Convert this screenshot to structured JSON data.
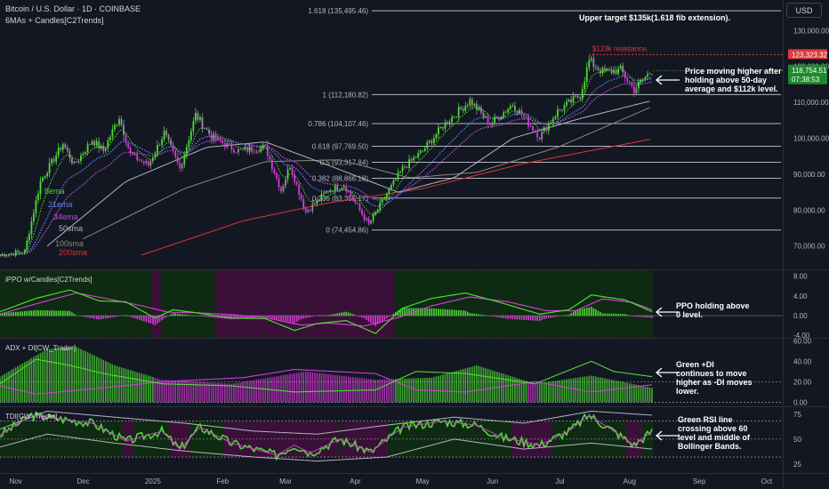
{
  "header": {
    "symbol_line": "Bitcoin / U.S. Dollar · 1D · COINBASE",
    "indicator_line": "6MAs + Candles[C2Trends]",
    "currency_button": "USD"
  },
  "colors": {
    "background": "#131722",
    "bull": "#4ed934",
    "bear": "#d43ad6",
    "neutral": "#8f8f8f",
    "ema8": "#4ed934",
    "ema21": "#5b7ff0",
    "ema34": "#b94fd6",
    "sma50": "#b2b5be",
    "sma100": "#8a8a78",
    "sma200": "#d93535",
    "fib_line": "#b2b5be",
    "current_price_bg": "#1e8a2e",
    "resistance": "#e03a3a",
    "ppo_bg_bull": "#0f2a12",
    "ppo_bg_bear": "#3a1038"
  },
  "chart_data": [
    {
      "type": "candlestick",
      "title": "Bitcoin / U.S. Dollar · 1D · COINBASE",
      "x_ticks": [
        "Nov",
        "Dec",
        "2025",
        "Feb",
        "Mar",
        "Apr",
        "May",
        "Jun",
        "Jul",
        "Aug",
        "Sep",
        "Oct"
      ],
      "y_ticks": [
        70000,
        80000,
        90000,
        100000,
        110000,
        120000,
        130000
      ],
      "y_tick_labels": [
        "70,000.00",
        "80,000.00",
        "90,000.00",
        "100,000.00",
        "110,000.00",
        "120,000.00",
        "130,000.00"
      ],
      "ylim": [
        63500,
        138500
      ],
      "current_price": 118754.51,
      "current_price_label": "118,754.51",
      "countdown": "07:38:53",
      "resistance_price": 123323.32,
      "resistance_price_label": "123,323.32",
      "resistance_text": "$123k resistance.",
      "fib_levels": [
        {
          "label": "1.618 (135,495.46)",
          "value": 135495.46
        },
        {
          "label": "1 (112,180.82)",
          "value": 112180.82
        },
        {
          "label": "0.786 (104,107.46)",
          "value": 104107.46
        },
        {
          "label": "0.618 (97,769.50)",
          "value": 97769.5
        },
        {
          "label": "0.5 (93,317.84)",
          "value": 93317.84
        },
        {
          "label": "0.382 (88,866.18)",
          "value": 88866.18
        },
        {
          "label": "0.236 (83,355.17)",
          "value": 83355.17
        },
        {
          "label": "0 (74,454.86)",
          "value": 74454.86
        }
      ],
      "price_path": [
        [
          "2024-10-25",
          67500
        ],
        [
          "2024-11-05",
          68500
        ],
        [
          "2024-11-12",
          88000
        ],
        [
          "2024-11-22",
          98500
        ],
        [
          "2024-11-27",
          92500
        ],
        [
          "2024-12-05",
          99500
        ],
        [
          "2024-12-10",
          96500
        ],
        [
          "2024-12-17",
          106000
        ],
        [
          "2024-12-22",
          95500
        ],
        [
          "2024-12-30",
          92500
        ],
        [
          "2025-01-06",
          101500
        ],
        [
          "2025-01-13",
          91500
        ],
        [
          "2025-01-20",
          106500
        ],
        [
          "2025-01-27",
          100500
        ],
        [
          "2025-02-03",
          98000
        ],
        [
          "2025-02-08",
          96500
        ],
        [
          "2025-02-20",
          97500
        ],
        [
          "2025-02-27",
          85500
        ],
        [
          "2025-03-03",
          92500
        ],
        [
          "2025-03-10",
          79500
        ],
        [
          "2025-03-20",
          85500
        ],
        [
          "2025-03-27",
          87000
        ],
        [
          "2025-04-07",
          76000
        ],
        [
          "2025-04-15",
          84500
        ],
        [
          "2025-04-22",
          91500
        ],
        [
          "2025-05-01",
          96500
        ],
        [
          "2025-05-10",
          103500
        ],
        [
          "2025-05-22",
          110500
        ],
        [
          "2025-05-31",
          104000
        ],
        [
          "2025-06-10",
          109500
        ],
        [
          "2025-06-22",
          100500
        ],
        [
          "2025-06-30",
          107500
        ],
        [
          "2025-07-10",
          112000
        ],
        [
          "2025-07-14",
          121500
        ],
        [
          "2025-07-20",
          118500
        ],
        [
          "2025-07-28",
          119000
        ],
        [
          "2025-08-03",
          113500
        ],
        [
          "2025-08-08",
          117000
        ],
        [
          "2025-08-11",
          118754
        ]
      ],
      "series": [
        {
          "name": "8ema",
          "color": "#4ed934"
        },
        {
          "name": "21ema",
          "color": "#5b7ff0"
        },
        {
          "name": "34ema",
          "color": "#b94fd6"
        },
        {
          "name": "50sma",
          "color": "#b2b5be"
        },
        {
          "name": "100sma",
          "color": "#8a8a78"
        },
        {
          "name": "200sma",
          "color": "#d93535"
        }
      ],
      "ma_paths": {
        "50sma": [
          [
            "2024-11-15",
            70000
          ],
          [
            "2024-12-20",
            88000
          ],
          [
            "2025-01-25",
            97500
          ],
          [
            "2025-02-20",
            99000
          ],
          [
            "2025-03-20",
            92500
          ],
          [
            "2025-04-20",
            85000
          ],
          [
            "2025-05-15",
            89000
          ],
          [
            "2025-06-10",
            100000
          ],
          [
            "2025-07-10",
            105500
          ],
          [
            "2025-08-11",
            110500
          ]
        ],
        "100sma": [
          [
            "2024-12-01",
            72000
          ],
          [
            "2025-01-15",
            86000
          ],
          [
            "2025-02-20",
            93500
          ],
          [
            "2025-03-25",
            94000
          ],
          [
            "2025-04-25",
            89000
          ],
          [
            "2025-05-25",
            90500
          ],
          [
            "2025-06-30",
            97500
          ],
          [
            "2025-08-11",
            108800
          ]
        ],
        "200sma": [
          [
            "2024-12-27",
            67500
          ],
          [
            "2025-02-10",
            77000
          ],
          [
            "2025-03-20",
            82000
          ],
          [
            "2025-05-01",
            86000
          ],
          [
            "2025-06-15",
            93000
          ],
          [
            "2025-08-11",
            99800
          ]
        ]
      },
      "annotations": [
        {
          "text": "Upper target $135k(1.618 fib extension)."
        },
        {
          "lines": [
            "Price moving higher after",
            "holding above 50-day",
            "average and $112k level."
          ]
        }
      ]
    },
    {
      "type": "line",
      "title": "iPPO w/Candles[C2Trends]",
      "y_ticks": [
        -4,
        0,
        4,
        8
      ],
      "y_tick_labels": [
        "-4.00",
        "0.00",
        "4.00",
        "8.00"
      ],
      "ylim": [
        -4.5,
        9.2
      ],
      "fast": [
        [
          "2024-10-25",
          0.8
        ],
        [
          "2024-11-10",
          3.5
        ],
        [
          "2024-11-25",
          5.2
        ],
        [
          "2024-12-08",
          3.0
        ],
        [
          "2024-12-20",
          2.8
        ],
        [
          "2025-01-02",
          -0.5
        ],
        [
          "2025-01-10",
          1.2
        ],
        [
          "2025-01-20",
          0.6
        ],
        [
          "2025-02-05",
          -0.5
        ],
        [
          "2025-02-20",
          -0.6
        ],
        [
          "2025-03-05",
          -3.0
        ],
        [
          "2025-03-15",
          -1.6
        ],
        [
          "2025-03-28",
          -1.0
        ],
        [
          "2025-04-10",
          -3.6
        ],
        [
          "2025-04-22",
          1.5
        ],
        [
          "2025-05-05",
          3.5
        ],
        [
          "2025-05-20",
          4.6
        ],
        [
          "2025-06-05",
          2.6
        ],
        [
          "2025-06-22",
          0.3
        ],
        [
          "2025-07-05",
          1.2
        ],
        [
          "2025-07-15",
          4.2
        ],
        [
          "2025-07-30",
          3.2
        ],
        [
          "2025-08-11",
          0.8
        ]
      ],
      "slow": [
        [
          "2024-10-25",
          0.3
        ],
        [
          "2024-11-10",
          2.4
        ],
        [
          "2024-11-28",
          4.6
        ],
        [
          "2024-12-12",
          3.4
        ],
        [
          "2024-12-25",
          2.2
        ],
        [
          "2025-01-08",
          0.7
        ],
        [
          "2025-01-20",
          0.6
        ],
        [
          "2025-02-05",
          0.2
        ],
        [
          "2025-02-20",
          -0.4
        ],
        [
          "2025-03-08",
          -1.9
        ],
        [
          "2025-03-20",
          -1.5
        ],
        [
          "2025-04-05",
          -2.1
        ],
        [
          "2025-04-20",
          -0.4
        ],
        [
          "2025-05-05",
          2.0
        ],
        [
          "2025-05-22",
          3.8
        ],
        [
          "2025-06-08",
          2.8
        ],
        [
          "2025-06-25",
          1.0
        ],
        [
          "2025-07-08",
          1.0
        ],
        [
          "2025-07-20",
          3.4
        ],
        [
          "2025-08-02",
          2.7
        ],
        [
          "2025-08-11",
          1.2
        ]
      ],
      "annotation": [
        "PPO holding above",
        "0 level."
      ]
    },
    {
      "type": "line",
      "title": "ADX + DI[CW_Trader]",
      "y_ticks": [
        0,
        20,
        40,
        60
      ],
      "y_tick_labels": [
        "0.00",
        "20.00",
        "40.00",
        "60.00"
      ],
      "ylim": [
        -4,
        62
      ],
      "adx": [
        [
          "2024-10-25",
          25
        ],
        [
          "2024-11-15",
          52
        ],
        [
          "2024-11-28",
          54
        ],
        [
          "2024-12-15",
          36
        ],
        [
          "2025-01-05",
          22
        ],
        [
          "2025-02-05",
          18
        ],
        [
          "2025-03-10",
          30
        ],
        [
          "2025-03-25",
          26
        ],
        [
          "2025-04-10",
          22
        ],
        [
          "2025-05-05",
          24
        ],
        [
          "2025-05-25",
          36
        ],
        [
          "2025-06-20",
          18
        ],
        [
          "2025-07-15",
          26
        ],
        [
          "2025-08-11",
          14
        ]
      ],
      "plus_di": [
        [
          "2024-10-25",
          18
        ],
        [
          "2024-11-10",
          42
        ],
        [
          "2024-11-25",
          36
        ],
        [
          "2024-12-10",
          28
        ],
        [
          "2025-01-05",
          18
        ],
        [
          "2025-02-05",
          16
        ],
        [
          "2025-03-05",
          10
        ],
        [
          "2025-04-10",
          12
        ],
        [
          "2025-04-28",
          30
        ],
        [
          "2025-05-20",
          28
        ],
        [
          "2025-06-20",
          18
        ],
        [
          "2025-07-15",
          40
        ],
        [
          "2025-07-25",
          30
        ],
        [
          "2025-08-11",
          25
        ]
      ],
      "minus_di": [
        [
          "2024-10-25",
          16
        ],
        [
          "2024-11-10",
          8
        ],
        [
          "2024-12-10",
          14
        ],
        [
          "2025-01-05",
          20
        ],
        [
          "2025-02-10",
          24
        ],
        [
          "2025-03-05",
          32
        ],
        [
          "2025-04-10",
          28
        ],
        [
          "2025-04-28",
          12
        ],
        [
          "2025-05-20",
          10
        ],
        [
          "2025-06-20",
          20
        ],
        [
          "2025-07-15",
          10
        ],
        [
          "2025-08-11",
          17
        ]
      ],
      "annotation": [
        "Green +DI",
        "continues to move",
        "higher as -DI moves",
        "lower."
      ]
    },
    {
      "type": "line",
      "title": "TDI[CW_Trader]",
      "y_ticks": [
        25,
        50,
        75
      ],
      "y_tick_labels": [
        "25",
        "50",
        "75"
      ],
      "ylim": [
        16,
        82
      ],
      "rsi": [
        [
          "2024-10-25",
          54
        ],
        [
          "2024-11-08",
          74
        ],
        [
          "2024-11-22",
          70
        ],
        [
          "2024-12-05",
          66
        ],
        [
          "2024-12-20",
          48
        ],
        [
          "2025-01-05",
          58
        ],
        [
          "2025-01-13",
          40
        ],
        [
          "2025-01-22",
          62
        ],
        [
          "2025-02-05",
          46
        ],
        [
          "2025-02-25",
          34
        ],
        [
          "2025-03-05",
          44
        ],
        [
          "2025-03-12",
          36
        ],
        [
          "2025-03-25",
          50
        ],
        [
          "2025-04-08",
          37
        ],
        [
          "2025-04-22",
          62
        ],
        [
          "2025-05-10",
          68
        ],
        [
          "2025-05-25",
          64
        ],
        [
          "2025-06-05",
          52
        ],
        [
          "2025-06-22",
          44
        ],
        [
          "2025-07-05",
          58
        ],
        [
          "2025-07-14",
          74
        ],
        [
          "2025-07-25",
          58
        ],
        [
          "2025-08-03",
          44
        ],
        [
          "2025-08-11",
          58
        ]
      ],
      "upper_band": [
        [
          "2024-10-25",
          60
        ],
        [
          "2024-11-15",
          78
        ],
        [
          "2024-12-15",
          72
        ],
        [
          "2025-01-15",
          66
        ],
        [
          "2025-02-15",
          58
        ],
        [
          "2025-03-15",
          55
        ],
        [
          "2025-04-15",
          64
        ],
        [
          "2025-05-15",
          72
        ],
        [
          "2025-06-15",
          66
        ],
        [
          "2025-07-15",
          78
        ],
        [
          "2025-08-11",
          74
        ]
      ],
      "lower_band": [
        [
          "2024-10-25",
          42
        ],
        [
          "2024-11-15",
          55
        ],
        [
          "2024-12-15",
          46
        ],
        [
          "2025-01-15",
          38
        ],
        [
          "2025-02-15",
          32
        ],
        [
          "2025-03-15",
          28
        ],
        [
          "2025-04-15",
          32
        ],
        [
          "2025-05-15",
          50
        ],
        [
          "2025-06-15",
          40
        ],
        [
          "2025-07-15",
          46
        ],
        [
          "2025-08-11",
          40
        ]
      ],
      "annotation": [
        "Green RSI line",
        "crossing above 60",
        "level and middle of",
        "Bollinger Bands."
      ]
    }
  ]
}
